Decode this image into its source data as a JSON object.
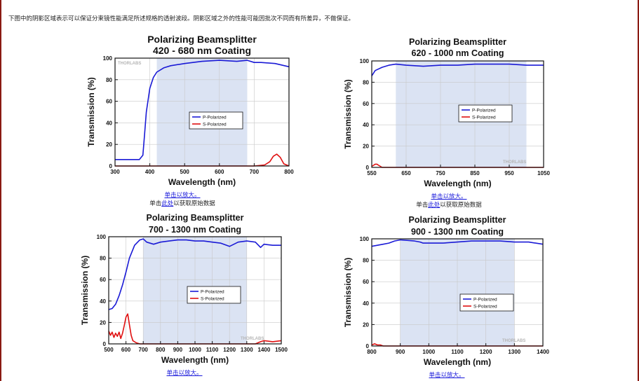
{
  "intro_text": "下图中的阴影区域表示可以保证分束镜性能满足所述规格的透射波段。阴影区域之外的性能可能因批次不同而有所差异，不做保证。",
  "colors": {
    "p_line": "#1a1ad6",
    "s_line": "#e01010",
    "shade": "#dbe3f3",
    "frame": "#8a1a12",
    "link": "#1a1adb"
  },
  "logo_text": "THORLABS",
  "panels": [
    {
      "links": {
        "enlarge": "单击以放大。",
        "raw_prefix": "单击",
        "raw_link": "此处",
        "raw_suffix": "以获取原始数据"
      },
      "chart": {
        "type": "line",
        "title": [
          "Polarizing Beamsplitter",
          "420 - 680 nm Coating"
        ],
        "xlabel": "Wavelength (nm)",
        "ylabel": "Transmission (%)",
        "xlim": [
          300,
          800
        ],
        "ylim": [
          0,
          100
        ],
        "xticks": [
          300,
          400,
          500,
          600,
          700,
          800
        ],
        "yticks": [
          0,
          20,
          40,
          60,
          80,
          100
        ],
        "shade": [
          420,
          680
        ],
        "grid": true,
        "legend_position": "center-right",
        "series": [
          {
            "name": "P-Polarized",
            "x": [
              300,
              360,
              370,
              380,
              385,
              390,
              400,
              410,
              420,
              440,
              460,
              500,
              550,
              600,
              650,
              680,
              700,
              720,
              760,
              800
            ],
            "y": [
              6,
              6,
              6,
              10,
              30,
              50,
              72,
              82,
              87,
              91,
              93,
              95,
              97,
              98,
              97,
              98,
              96,
              96,
              95,
              92
            ]
          },
          {
            "name": "S-Polarized",
            "x": [
              300,
              700,
              730,
              745,
              755,
              765,
              775,
              785,
              800
            ],
            "y": [
              0,
              0,
              1,
              4,
              9,
              11,
              8,
              2,
              0
            ]
          }
        ]
      }
    },
    {
      "links": {
        "enlarge": "单击以放大。",
        "raw_prefix": "单击",
        "raw_link": "此处",
        "raw_suffix": "以获取原始数据"
      },
      "chart": {
        "type": "line",
        "title": [
          "Polarizing Beamsplitter",
          "620 - 1000 nm Coating"
        ],
        "xlabel": "Wavelength (nm)",
        "ylabel": "Transmission (%)",
        "xlim": [
          550,
          1050
        ],
        "ylim": [
          0,
          100
        ],
        "xticks": [
          550,
          650,
          750,
          850,
          950,
          1050
        ],
        "yticks": [
          0,
          20,
          40,
          60,
          80,
          100
        ],
        "shade": [
          620,
          1000
        ],
        "grid": true,
        "legend_position": "center-right",
        "series": [
          {
            "name": "P-Polarized",
            "x": [
              550,
              560,
              580,
              600,
              620,
              650,
              700,
              750,
              800,
              850,
              900,
              950,
              1000,
              1050
            ],
            "y": [
              86,
              91,
              94,
              96,
              97,
              96,
              95,
              96,
              96,
              97,
              97,
              97,
              96,
              96
            ]
          },
          {
            "name": "S-Polarized",
            "x": [
              550,
              555,
              560,
              565,
              570,
              575,
              580,
              600,
              1050
            ],
            "y": [
              1,
              2,
              3,
              3,
              2,
              1,
              0,
              0,
              0
            ]
          }
        ]
      }
    },
    {
      "links": {
        "enlarge": "单击以放大。"
      },
      "chart": {
        "type": "line",
        "title": [
          "Polarizing Beamsplitter",
          "700 - 1300 nm Coating"
        ],
        "xlabel": "Wavelength (nm)",
        "ylabel": "Transmission (%)",
        "xlim": [
          500,
          1500
        ],
        "ylim": [
          0,
          100
        ],
        "xticks": [
          500,
          600,
          700,
          800,
          900,
          1000,
          1100,
          1200,
          1300,
          1400,
          1500
        ],
        "yticks": [
          0,
          20,
          40,
          60,
          80,
          100
        ],
        "shade": [
          700,
          1300
        ],
        "grid": true,
        "legend_position": "center-right",
        "series": [
          {
            "name": "P-Polarized",
            "x": [
              500,
              520,
              540,
              560,
              580,
              600,
              620,
              650,
              680,
              700,
              720,
              760,
              800,
              850,
              900,
              950,
              1000,
              1050,
              1100,
              1150,
              1200,
              1250,
              1300,
              1350,
              1380,
              1400,
              1450,
              1500
            ],
            "y": [
              32,
              33,
              37,
              45,
              55,
              67,
              80,
              92,
              97,
              98,
              95,
              93,
              95,
              96,
              97,
              97,
              96,
              96,
              95,
              94,
              91,
              95,
              96,
              95,
              90,
              93,
              92,
              92
            ]
          },
          {
            "name": "S-Polarized",
            "x": [
              500,
              510,
              520,
              530,
              540,
              550,
              560,
              570,
              580,
              590,
              600,
              610,
              620,
              630,
              640,
              660,
              680,
              700,
              1300,
              1350,
              1380,
              1400,
              1450,
              1500
            ],
            "y": [
              12,
              8,
              11,
              6,
              10,
              7,
              11,
              5,
              10,
              17,
              25,
              28,
              18,
              8,
              3,
              1,
              0,
              0,
              0,
              0,
              2,
              3,
              2,
              3
            ]
          }
        ]
      }
    },
    {
      "links": {
        "enlarge": "单击以放大。"
      },
      "chart": {
        "type": "line",
        "title": [
          "Polarizing Beamsplitter",
          "900 - 1300 nm Coating"
        ],
        "xlabel": "Wavelength (nm)",
        "ylabel": "Transmission (%)",
        "xlim": [
          800,
          1400
        ],
        "ylim": [
          0,
          100
        ],
        "xticks": [
          800,
          900,
          1000,
          1100,
          1200,
          1300,
          1400
        ],
        "yticks": [
          0,
          20,
          40,
          60,
          80,
          100
        ],
        "shade": [
          900,
          1300
        ],
        "grid": true,
        "legend_position": "center-right",
        "series": [
          {
            "name": "P-Polarized",
            "x": [
              800,
              820,
              840,
              860,
              880,
              900,
              950,
              970,
              980,
              1000,
              1050,
              1100,
              1150,
              1200,
              1250,
              1300,
              1350,
              1400
            ],
            "y": [
              93,
              94,
              95,
              96,
              98,
              99,
              98,
              97,
              96,
              96,
              96,
              97,
              98,
              98,
              98,
              97,
              97,
              95
            ]
          },
          {
            "name": "S-Polarized",
            "x": [
              800,
              810,
              820,
              830,
              840,
              860,
              1400
            ],
            "y": [
              1,
              2,
              1,
              1,
              0,
              0,
              0
            ]
          }
        ]
      }
    }
  ]
}
